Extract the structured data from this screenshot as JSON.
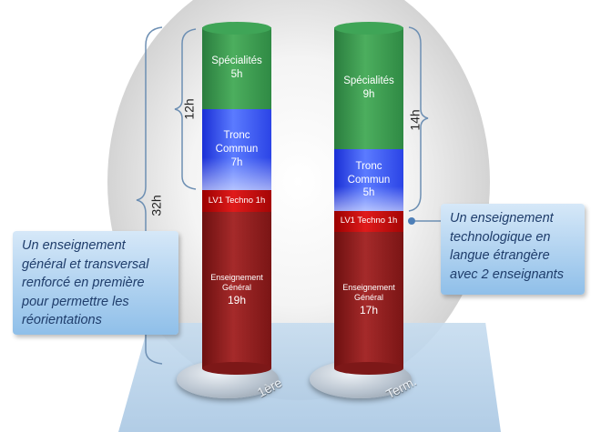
{
  "columns": [
    {
      "label": "1ère",
      "segments": {
        "specialites": {
          "name": "Spécialités",
          "hours": "5h"
        },
        "tronc": {
          "line1": "Tronc",
          "line2": "Commun",
          "hours": "7h"
        },
        "lv1": "LV1 Techno 1h",
        "general": {
          "line1": "Enseignement",
          "line2": "Général",
          "hours": "19h"
        }
      },
      "brace_inner": "12h",
      "brace_outer": "32h"
    },
    {
      "label": "Term.",
      "segments": {
        "specialites": {
          "name": "Spécialités",
          "hours": "9h"
        },
        "tronc": {
          "line1": "Tronc",
          "line2": "Commun",
          "hours": "5h"
        },
        "lv1": "LV1 Techno 1h",
        "general": {
          "line1": "Enseignement",
          "line2": "Général",
          "hours": "17h"
        }
      },
      "brace_inner": "14h"
    }
  ],
  "callouts": {
    "left": [
      "Un enseignement",
      "général et transversal",
      "renforcé en première",
      "pour permettre les",
      "réorientations"
    ],
    "right": [
      "Un enseignement",
      "technologique en",
      "langue étrangère",
      "avec 2 enseignants"
    ]
  },
  "colors": {
    "specialites": "#3c9a50",
    "tronc_commun": "#2b44e6",
    "lv1": "#d01515",
    "general": "#8f2222",
    "callout": "#a9cdee",
    "callout_text": "#1f3d6b"
  },
  "icons": [
    "curly-brace",
    "connector-dot"
  ]
}
